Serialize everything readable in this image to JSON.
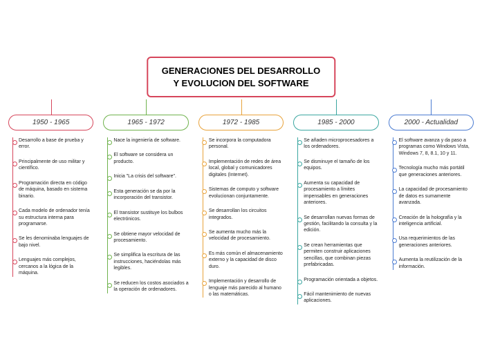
{
  "title": {
    "line1": "GENERACIONES DEL DESARROLLO",
    "line2": "Y EVOLUCION DEL SOFTWARE",
    "border_color": "#d6455a"
  },
  "branches": [
    {
      "label": "1950 - 1965",
      "color": "#d6455a",
      "items": [
        "Desarrollo a base de prueba y error.",
        "Principalmente de uso militar y científico.",
        "Programación directa en código de máquina, basado en sistema binario.",
        "Cada modelo de ordenador tenía su estructura interna para programarse.",
        "Se les denominaba lenguajes de bajo nivel.",
        "Lenguajes más complejos, cercanos a la lógica de la máquina."
      ]
    },
    {
      "label": "1965 - 1972",
      "color": "#6fb24c",
      "items": [
        "Nace la ingeniería de software.",
        "El software se considera un producto.",
        "Inicia \"La crisis del software\".",
        "Esta generación se da por la incorporación del transistor.",
        "El transistor sustituye los bulbos electrónicos.",
        "Se obtiene mayor velocidad de procesamiento.",
        "Se simplifica la escritura de las instrucciones, haciéndolas más legibles.",
        "Se reducen los costos asociados a la operación de ordenadores."
      ]
    },
    {
      "label": "1972 - 1985",
      "color": "#e8a23a",
      "items": [
        "Se incorpora la computadora personal.",
        "Implementación de redes de área local, global y comunicadores digitales (Internet).",
        "Sistemas de computo y software evolucionan conjuntamente.",
        "Se desarrollan los circuitos integrados.",
        "Se aumenta mucho más la velocidad de procesamiento.",
        "Es más común el almacenamiento externo y la capacidad de disco duro.",
        "Implementación y desarrollo de lenguaje más parecido al humano o las matemáticas."
      ]
    },
    {
      "label": "1985 - 2000",
      "color": "#3aa6a0",
      "items": [
        "Se añaden microprocesadores a los ordenadores.",
        "Se disminuye el tamaño de los equipos.",
        "Aumenta su capacidad de procesamiento a límites impensables en generaciones anteriores.",
        "Se desarrollan nuevas formas de gestión, facilitando la consulta y la edición.",
        "Se crean herramientas que permiten construir aplicaciones sencillas, que combinan piezas prefabricadas.",
        "Programación orientada a objetos.",
        "Fácil mantenimiento de nuevas aplicaciones."
      ]
    },
    {
      "label": "2000 - Actualidad",
      "color": "#4a7bd1",
      "items": [
        "El software avanza y da paso a programas como Windows Vista, Windows 7, 8, 8.1, 10 y 11.",
        "Tecnología mucho más portátil que generaciones anteriores.",
        "La capacidad de procesamiento de datos es sumamente avanzada.",
        "Creación de la holografía y la inteligencia artificial.",
        "Usa requerimientos de las generaciones anteriores.",
        "Aumenta la reutilización de la información."
      ]
    }
  ]
}
